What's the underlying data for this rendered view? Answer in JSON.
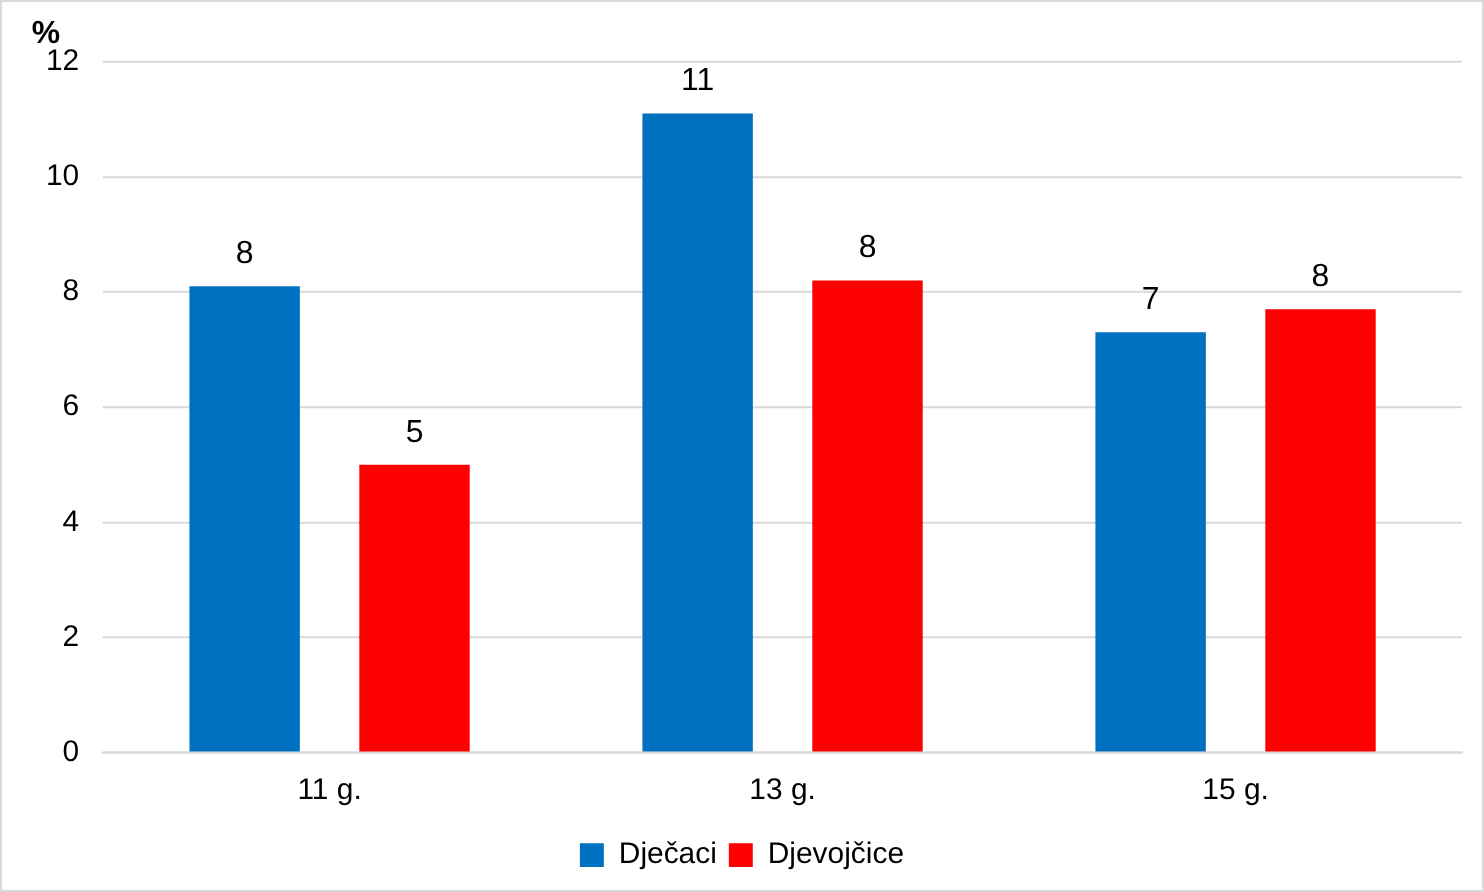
{
  "chart_data": {
    "type": "bar",
    "ylabel": "%",
    "categories": [
      "11 g.",
      "13 g.",
      "15 g."
    ],
    "series": [
      {
        "name": "Dječaci",
        "color": "#0070c0",
        "values": [
          8.1,
          11.1,
          7.3
        ],
        "value_labels": [
          "8",
          "11",
          "7"
        ]
      },
      {
        "name": "Djevojčice",
        "color": "#ff0000",
        "values": [
          5.0,
          8.2,
          7.7
        ],
        "value_labels": [
          "5",
          "8",
          "8"
        ]
      }
    ],
    "ylim": [
      0,
      12
    ],
    "yticks": [
      0,
      2,
      4,
      6,
      8,
      10,
      12
    ],
    "grid": "y",
    "legend": "bottom"
  }
}
